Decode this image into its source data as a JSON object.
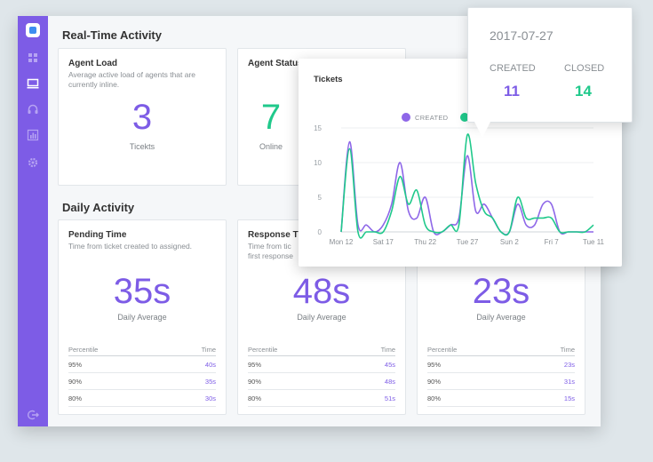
{
  "sidebar": {
    "icons": [
      "logo-icon",
      "apps-icon",
      "monitor-icon",
      "headset-icon",
      "chart-icon",
      "settings-icon",
      "logout-icon"
    ]
  },
  "realtime": {
    "title": "Real-Time Activity",
    "agent_load": {
      "title": "Agent Load",
      "desc": "Average active load of agents that are currently inline.",
      "value": "3",
      "sub": "Ticekts"
    },
    "agent_status": {
      "title": "Agent Status",
      "value": "7",
      "sub": "Online"
    }
  },
  "daily": {
    "title": "Daily Activity",
    "pending": {
      "title": "Pending Time",
      "desc": "Time from ticket created to assigned.",
      "value": "35s",
      "sub": "Daily Average",
      "col_percentile": "Percentile",
      "col_time": "Time",
      "rows": [
        {
          "p": "95%",
          "t": "40s"
        },
        {
          "p": "90%",
          "t": "35s"
        },
        {
          "p": "80%",
          "t": "30s"
        }
      ]
    },
    "response": {
      "title": "Response Ti",
      "desc1": "Time from tic",
      "desc2": "first response",
      "value": "48s",
      "sub": "Daily Average",
      "col_percentile": "Percentile",
      "col_time": "Time",
      "rows": [
        {
          "p": "95%",
          "t": "45s"
        },
        {
          "p": "90%",
          "t": "48s"
        },
        {
          "p": "80%",
          "t": "51s"
        }
      ]
    },
    "resolution": {
      "value": "23s",
      "sub": "Daily Average",
      "col_percentile": "Percentile",
      "col_time": "Time",
      "rows": [
        {
          "p": "95%",
          "t": "23s"
        },
        {
          "p": "90%",
          "t": "31s"
        },
        {
          "p": "80%",
          "t": "15s"
        }
      ]
    }
  },
  "chart_popup": {
    "title": "Tickets",
    "legend_created": "CREATED"
  },
  "tooltip": {
    "date": "2017-07-27",
    "created_label": "CREATED",
    "closed_label": "CLOSED",
    "created_value": "11",
    "closed_value": "14"
  },
  "colors": {
    "accent": "#7d5ce6",
    "created": "#8e67e8",
    "closed": "#20c98b"
  },
  "chart_data": {
    "type": "line",
    "title": "Tickets",
    "ylim": [
      0,
      15
    ],
    "yticks": [
      "0",
      "5",
      "10",
      "15"
    ],
    "xlabels": [
      "Mon 12",
      "Sat 17",
      "Thu 22",
      "Tue 27",
      "Sun 2",
      "Fri 7",
      "Tue 11"
    ],
    "x": [
      "07-12",
      "07-13",
      "07-14",
      "07-15",
      "07-16",
      "07-17",
      "07-18",
      "07-19",
      "07-20",
      "07-21",
      "07-22",
      "07-23",
      "07-24",
      "07-25",
      "07-26",
      "07-27",
      "07-28",
      "07-29",
      "07-30",
      "07-31",
      "08-01",
      "08-02",
      "08-03",
      "08-04",
      "08-05",
      "08-06",
      "08-07",
      "08-08",
      "08-09",
      "08-10",
      "08-11"
    ],
    "grid": true,
    "legend": "top",
    "series": [
      {
        "name": "CREATED",
        "values": [
          0,
          13,
          1,
          1,
          0,
          1,
          4,
          10,
          3,
          2,
          5,
          0,
          0,
          1,
          2,
          11,
          3,
          4,
          2,
          0,
          0,
          4,
          1,
          1,
          4,
          4,
          0,
          0,
          0,
          0,
          0
        ]
      },
      {
        "name": "CLOSED",
        "values": [
          0,
          12,
          0,
          0,
          0,
          0,
          3,
          8,
          4,
          6,
          1,
          0,
          0,
          1,
          1,
          14,
          7,
          3,
          2,
          0,
          0,
          5,
          2,
          2,
          2,
          2,
          0,
          0,
          0,
          0,
          1
        ]
      }
    ]
  }
}
